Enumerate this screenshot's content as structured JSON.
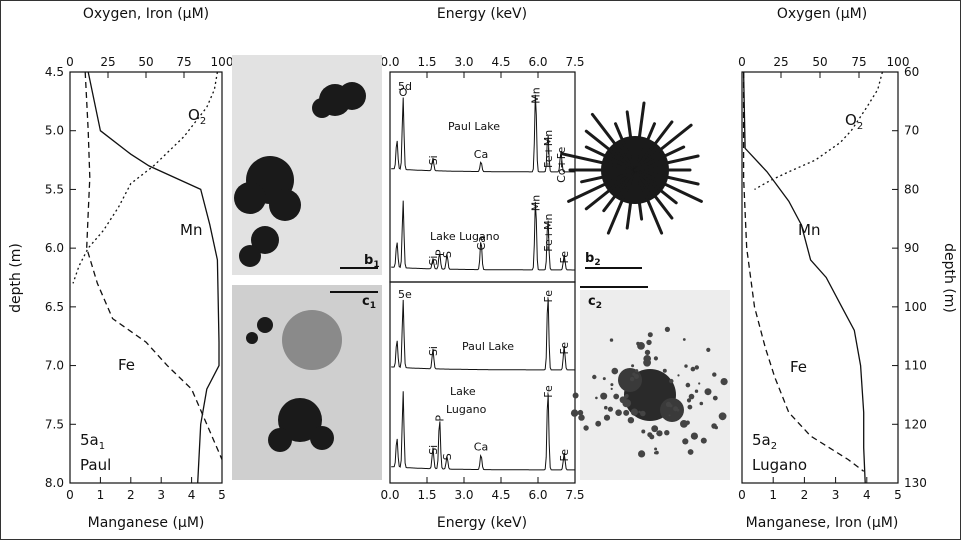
{
  "chart_data": [
    {
      "id": "5a1",
      "type": "line",
      "panel_label": "5a",
      "panel_sub": "1",
      "panel_lake": "Paul",
      "ylabel": "depth (m)",
      "ylim": [
        4.5,
        8.0
      ],
      "y_reversed": true,
      "yticks": [
        "4.5",
        "5.0",
        "5.5",
        "6.0",
        "6.5",
        "7.0",
        "7.5",
        "8.0"
      ],
      "top_axis": {
        "label": "Oxygen, Iron (µM)",
        "lim": [
          0,
          100
        ],
        "ticks": [
          "0",
          "25",
          "50",
          "75",
          "100"
        ]
      },
      "bottom_axis": {
        "label": "Manganese (µM)",
        "lim": [
          0,
          5
        ],
        "ticks": [
          "0",
          "1",
          "2",
          "3",
          "4",
          "5"
        ]
      },
      "series": [
        {
          "name": "O2",
          "label_main": "O",
          "label_sub": "2",
          "axis": "top",
          "style": "dotted",
          "points": [
            [
              97,
              4.5
            ],
            [
              95,
              4.65
            ],
            [
              90,
              4.8
            ],
            [
              75,
              5.05
            ],
            [
              55,
              5.3
            ],
            [
              40,
              5.45
            ],
            [
              32,
              5.65
            ],
            [
              22,
              5.85
            ],
            [
              12,
              6.0
            ],
            [
              6,
              6.15
            ],
            [
              2,
              6.3
            ]
          ]
        },
        {
          "name": "Mn",
          "label_main": "Mn",
          "label_sub": "",
          "axis": "bottom",
          "style": "solid",
          "points": [
            [
              0.6,
              4.5
            ],
            [
              1.0,
              5.0
            ],
            [
              2.0,
              5.2
            ],
            [
              2.6,
              5.3
            ],
            [
              4.3,
              5.5
            ],
            [
              4.6,
              5.8
            ],
            [
              4.85,
              6.1
            ],
            [
              4.9,
              6.8
            ],
            [
              4.9,
              7.0
            ],
            [
              4.5,
              7.2
            ],
            [
              4.3,
              7.5
            ],
            [
              4.2,
              8.0
            ]
          ]
        },
        {
          "name": "Fe",
          "label_main": "Fe",
          "label_sub": "",
          "axis": "top",
          "style": "dashed",
          "points": [
            [
              10,
              4.5
            ],
            [
              12,
              5.0
            ],
            [
              13,
              5.4
            ],
            [
              12,
              5.7
            ],
            [
              11,
              6.0
            ],
            [
              18,
              6.3
            ],
            [
              28,
              6.6
            ],
            [
              50,
              6.8
            ],
            [
              64,
              7.0
            ],
            [
              80,
              7.2
            ],
            [
              90,
              7.5
            ],
            [
              100,
              7.8
            ]
          ]
        }
      ]
    },
    {
      "id": "spectra",
      "type": "line",
      "top_axis": {
        "label": "Energy (keV)",
        "lim": [
          0,
          7.5
        ],
        "ticks": [
          "0.0",
          "1.5",
          "3.0",
          "4.5",
          "6.0",
          "7.5"
        ]
      },
      "bottom_axis": {
        "label": "Energy (keV)",
        "lim": [
          0,
          7.5
        ],
        "ticks": [
          "0.0",
          "1.5",
          "3.0",
          "4.5",
          "6.0",
          "7.5"
        ]
      },
      "panels": [
        {
          "label": "5d",
          "spectra": [
            {
              "name": "Paul Lake",
              "peaks": [
                [
                  0.28,
                  0.35
                ],
                [
                  0.53,
                  0.85
                ],
                [
                  1.74,
                  0.15
                ],
                [
                  3.69,
                  0.12
                ],
                [
                  5.9,
                  0.95
                ],
                [
                  6.4,
                  0.45
                ],
                [
                  6.93,
                  0.25
                ]
              ],
              "annotations": [
                [
                  "O",
                  0.53,
                  "h"
                ],
                [
                  "Si",
                  1.74,
                  "v"
                ],
                [
                  "Ca",
                  3.69,
                  "h"
                ],
                [
                  "Mn",
                  5.9,
                  "v"
                ],
                [
                  "Fe+Mn",
                  6.4,
                  "v"
                ],
                [
                  "Co+Fe",
                  6.93,
                  "v"
                ]
              ]
            },
            {
              "name": "Lake Lugano",
              "peaks": [
                [
                  0.28,
                  0.35
                ],
                [
                  0.53,
                  0.9
                ],
                [
                  1.74,
                  0.14
                ],
                [
                  2.01,
                  0.22
                ],
                [
                  2.31,
                  0.2
                ],
                [
                  3.69,
                  0.4
                ],
                [
                  5.9,
                  0.95
                ],
                [
                  6.4,
                  0.7
                ],
                [
                  7.06,
                  0.2
                ]
              ],
              "annotations": [
                [
                  "Mn",
                  5.9,
                  "v"
                ],
                [
                  "Fe+Mn",
                  6.4,
                  "v"
                ],
                [
                  "Si",
                  1.74,
                  "v"
                ],
                [
                  "P",
                  2.01,
                  "v"
                ],
                [
                  "S",
                  2.31,
                  "v"
                ],
                [
                  "Ca",
                  3.69,
                  "v"
                ],
                [
                  "Fe",
                  7.06,
                  "v"
                ]
              ]
            }
          ]
        },
        {
          "label": "5e",
          "spectra": [
            {
              "name": "Paul Lake",
              "peaks": [
                [
                  0.28,
                  0.35
                ],
                [
                  0.53,
                  0.85
                ],
                [
                  1.74,
                  0.25
                ],
                [
                  6.4,
                  0.95
                ],
                [
                  7.06,
                  0.3
                ]
              ],
              "annotations": [
                [
                  "Si",
                  1.74,
                  "v"
                ],
                [
                  "Fe",
                  6.4,
                  "v"
                ],
                [
                  "Fe",
                  7.06,
                  "v"
                ]
              ]
            },
            {
              "name": "Lake Lugano",
              "name_line2": "Lugano",
              "name_line1": "Lake",
              "peaks": [
                [
                  0.28,
                  0.35
                ],
                [
                  0.53,
                  0.9
                ],
                [
                  1.74,
                  0.25
                ],
                [
                  2.01,
                  0.6
                ],
                [
                  2.31,
                  0.15
                ],
                [
                  3.69,
                  0.18
                ],
                [
                  6.4,
                  0.95
                ],
                [
                  7.06,
                  0.2
                ]
              ],
              "annotations": [
                [
                  "Si",
                  1.74,
                  "v"
                ],
                [
                  "P",
                  2.01,
                  "v"
                ],
                [
                  "S",
                  2.31,
                  "v"
                ],
                [
                  "Ca",
                  3.69,
                  "h"
                ],
                [
                  "Fe",
                  6.4,
                  "v"
                ],
                [
                  "Fe",
                  7.06,
                  "v"
                ]
              ]
            }
          ]
        }
      ]
    },
    {
      "id": "5a2",
      "type": "line",
      "panel_label": "5a",
      "panel_sub": "2",
      "panel_lake": "Lugano",
      "ylabel": "depth (m)",
      "ylim": [
        60,
        130
      ],
      "y_reversed": true,
      "yticks": [
        "60",
        "70",
        "80",
        "90",
        "100",
        "110",
        "120",
        "130"
      ],
      "top_axis": {
        "label": "Oxygen (µM)",
        "lim": [
          0,
          100
        ],
        "ticks": [
          "0",
          "25",
          "50",
          "75",
          "100"
        ]
      },
      "bottom_axis": {
        "label": "Manganese, Iron (µM)",
        "lim": [
          0,
          5
        ],
        "ticks": [
          "0",
          "1",
          "2",
          "3",
          "4",
          "5"
        ]
      },
      "series": [
        {
          "name": "O2",
          "label_main": "O",
          "label_sub": "2",
          "axis": "top",
          "style": "dotted",
          "points": [
            [
              90,
              60
            ],
            [
              87,
              63
            ],
            [
              80,
              66
            ],
            [
              70,
              70
            ],
            [
              63,
              72
            ],
            [
              47,
              75
            ],
            [
              30,
              77
            ],
            [
              18,
              78.5
            ],
            [
              8,
              80
            ]
          ]
        },
        {
          "name": "Mn",
          "label_main": "Mn",
          "label_sub": "",
          "axis": "bottom",
          "style": "solid",
          "points": [
            [
              0.05,
              60
            ],
            [
              0.1,
              73
            ],
            [
              0.8,
              77
            ],
            [
              1.5,
              82
            ],
            [
              1.9,
              86
            ],
            [
              2.2,
              92
            ],
            [
              2.7,
              95
            ],
            [
              3.2,
              100
            ],
            [
              3.6,
              104
            ],
            [
              3.8,
              110
            ],
            [
              3.9,
              118
            ],
            [
              3.9,
              124
            ],
            [
              3.95,
              130
            ]
          ]
        },
        {
          "name": "Fe",
          "label_main": "Fe",
          "label_sub": "",
          "axis": "bottom",
          "style": "dashed",
          "points": [
            [
              0.05,
              60
            ],
            [
              0.05,
              78
            ],
            [
              0.15,
              90
            ],
            [
              0.4,
              100
            ],
            [
              0.75,
              107
            ],
            [
              1.05,
              112
            ],
            [
              1.5,
              118
            ],
            [
              2.2,
              122
            ],
            [
              2.8,
              124
            ],
            [
              3.4,
              126
            ],
            [
              3.9,
              128
            ]
          ]
        }
      ]
    }
  ],
  "images": {
    "b1": {
      "main": "b",
      "sub": "1"
    },
    "c1": {
      "main": "c",
      "sub": "1"
    },
    "b2": {
      "main": "b",
      "sub": "2"
    },
    "c2": {
      "main": "c",
      "sub": "2"
    }
  }
}
